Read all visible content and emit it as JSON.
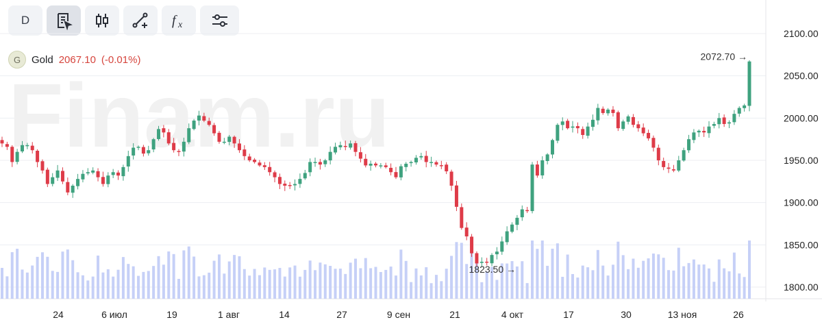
{
  "toolbar": {
    "interval_label": "D",
    "buttons": [
      {
        "icon": "notes-icon",
        "active": true
      },
      {
        "icon": "candlestick-icon"
      },
      {
        "icon": "draw-line-icon"
      },
      {
        "icon": "function-icon"
      },
      {
        "icon": "settings-sliders-icon"
      }
    ]
  },
  "instrument": {
    "badge": "G",
    "name": "Gold",
    "last_price": "2067.10",
    "change": "(-0.01%)"
  },
  "watermark": "Finam.ru",
  "colors": {
    "up": "#3fa27f",
    "down": "#de3b48",
    "volume": "#c6d0f7",
    "grid": "#eceef2",
    "axis_text": "#222222"
  },
  "chart_data": {
    "type": "candlestick",
    "ylim": [
      1785,
      2110
    ],
    "y_ticks": [
      "1800.00",
      "1850.00",
      "1900.00",
      "1950.00",
      "2000.00",
      "2050.00",
      "2100.00"
    ],
    "x_tick_labels": [
      "24",
      "6 июл",
      "19",
      "1 авг",
      "14",
      "27",
      "9 сен",
      "21",
      "4 окт",
      "17",
      "30",
      "13 ноя",
      "26"
    ],
    "annotations": [
      {
        "text": "2072.70 →",
        "value": 2072.7
      },
      {
        "text": "1823.50 →",
        "value": 1823.5
      }
    ],
    "closes": [
      1970,
      1966,
      1948,
      1960,
      1968,
      1968,
      1962,
      1948,
      1938,
      1922,
      1930,
      1938,
      1925,
      1912,
      1920,
      1928,
      1934,
      1936,
      1938,
      1930,
      1922,
      1932,
      1936,
      1932,
      1942,
      1955,
      1965,
      1966,
      1958,
      1962,
      1975,
      1987,
      1983,
      1970,
      1962,
      1960,
      1972,
      1988,
      1997,
      2003,
      1997,
      1992,
      1982,
      1972,
      1972,
      1978,
      1970,
      1962,
      1955,
      1950,
      1948,
      1944,
      1942,
      1936,
      1930,
      1922,
      1920,
      1920,
      1922,
      1928,
      1935,
      1948,
      1948,
      1945,
      1950,
      1960,
      1966,
      1968,
      1966,
      1970,
      1960,
      1952,
      1944,
      1946,
      1944,
      1944,
      1942,
      1936,
      1930,
      1943,
      1946,
      1948,
      1953,
      1955,
      1948,
      1948,
      1945,
      1944,
      1937,
      1920,
      1895,
      1870,
      1860,
      1840,
      1828,
      1830,
      1829,
      1838,
      1842,
      1854,
      1866,
      1874,
      1882,
      1892,
      1890,
      1945,
      1932,
      1950,
      1957,
      1974,
      1992,
      1996,
      1988,
      1990,
      1988,
      1980,
      1990,
      1998,
      2012,
      2006,
      2010,
      2006,
      1988,
      1996,
      2002,
      1992,
      1988,
      1982,
      1976,
      1965,
      1950,
      1942,
      1940,
      1938,
      1950,
      1962,
      1975,
      1983,
      1985,
      1983,
      1990,
      1993,
      2000,
      1993,
      1995,
      2005,
      2012,
      2015,
      2067
    ]
  }
}
